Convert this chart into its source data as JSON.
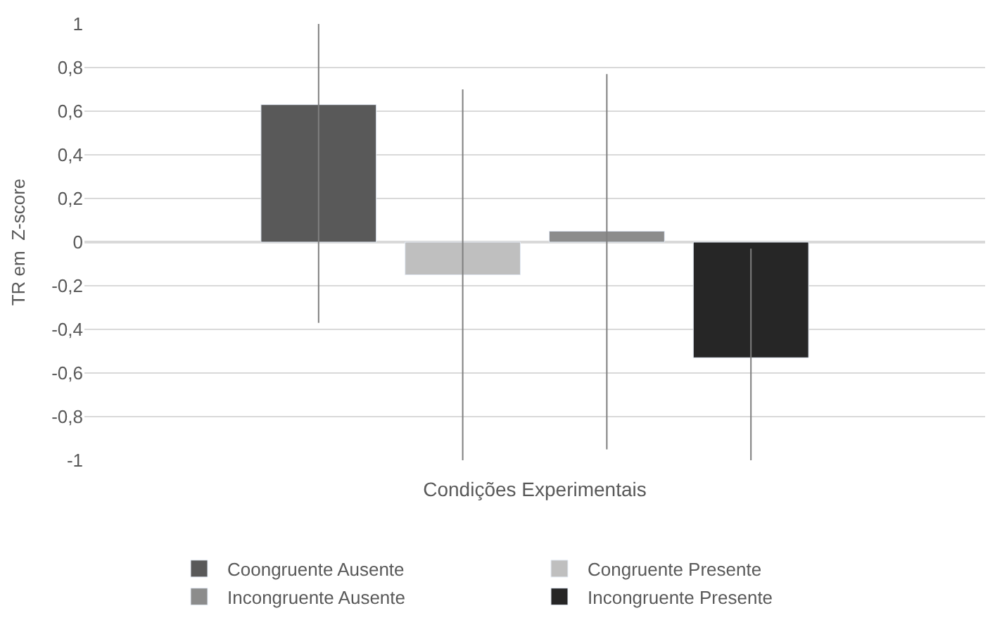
{
  "chart_data": {
    "type": "bar",
    "xlabel": "Condições Experimentais",
    "ylabel": "TR em  Z-score",
    "categories": [
      null
    ],
    "series": [
      {
        "name": "Coongruente Ausente",
        "color": "#595959",
        "values": [
          0.63
        ],
        "errors": [
          [
            -0.37,
            1
          ]
        ]
      },
      {
        "name": "Congruente Presente",
        "color": "#bfbfbf",
        "values": [
          -0.15
        ],
        "errors": [
          [
            -1,
            0.7
          ]
        ]
      },
      {
        "name": "Incongruente Ausente",
        "color": "#8c8c8c",
        "values": [
          0.05
        ],
        "errors": [
          [
            -0.95,
            0.77
          ]
        ]
      },
      {
        "name": "Incongruente Presente",
        "color": "#262626",
        "values": [
          -0.53
        ],
        "errors": [
          [
            -1,
            -0.03
          ]
        ]
      }
    ],
    "ylim": [
      -1,
      1
    ],
    "yticks": [
      {
        "value": -1,
        "label": "-1"
      },
      {
        "value": -0.8,
        "label": "-0,8"
      },
      {
        "value": -0.6,
        "label": "-0,6"
      },
      {
        "value": -0.4,
        "label": "-0,4"
      },
      {
        "value": -0.2,
        "label": "-0,2"
      },
      0,
      {
        "value": 0.2,
        "label": "0,2"
      },
      {
        "value": 0.4,
        "label": "0,4"
      },
      {
        "value": 0.6,
        "label": "0,6"
      },
      {
        "value": 0.8,
        "label": "0,8"
      },
      1
    ],
    "grid": "y",
    "legend": "bottom",
    "tick_labels": "y"
  }
}
